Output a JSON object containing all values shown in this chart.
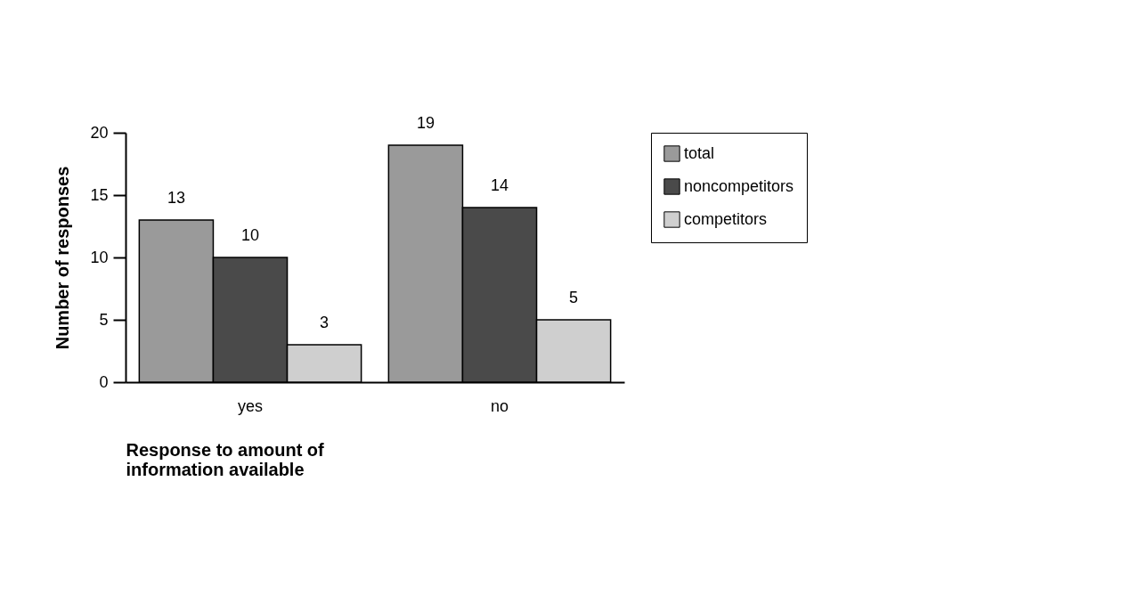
{
  "chart_data": {
    "type": "bar",
    "xlabel": "Response to amount of information available",
    "ylabel": "Number   of   responses",
    "categories": [
      "yes",
      "no"
    ],
    "series": [
      {
        "name": "total",
        "color": "#9a9a9a",
        "values": [
          13,
          19
        ]
      },
      {
        "name": "noncompetitors",
        "color": "#4a4a4a",
        "values": [
          10,
          14
        ]
      },
      {
        "name": "competitors",
        "color": "#cfcfcf",
        "values": [
          3,
          5
        ]
      }
    ],
    "ylim": [
      0,
      20
    ],
    "yticks": [
      0,
      5,
      10,
      15,
      20
    ],
    "grid": false,
    "legend": "top right",
    "data_labels": true
  }
}
